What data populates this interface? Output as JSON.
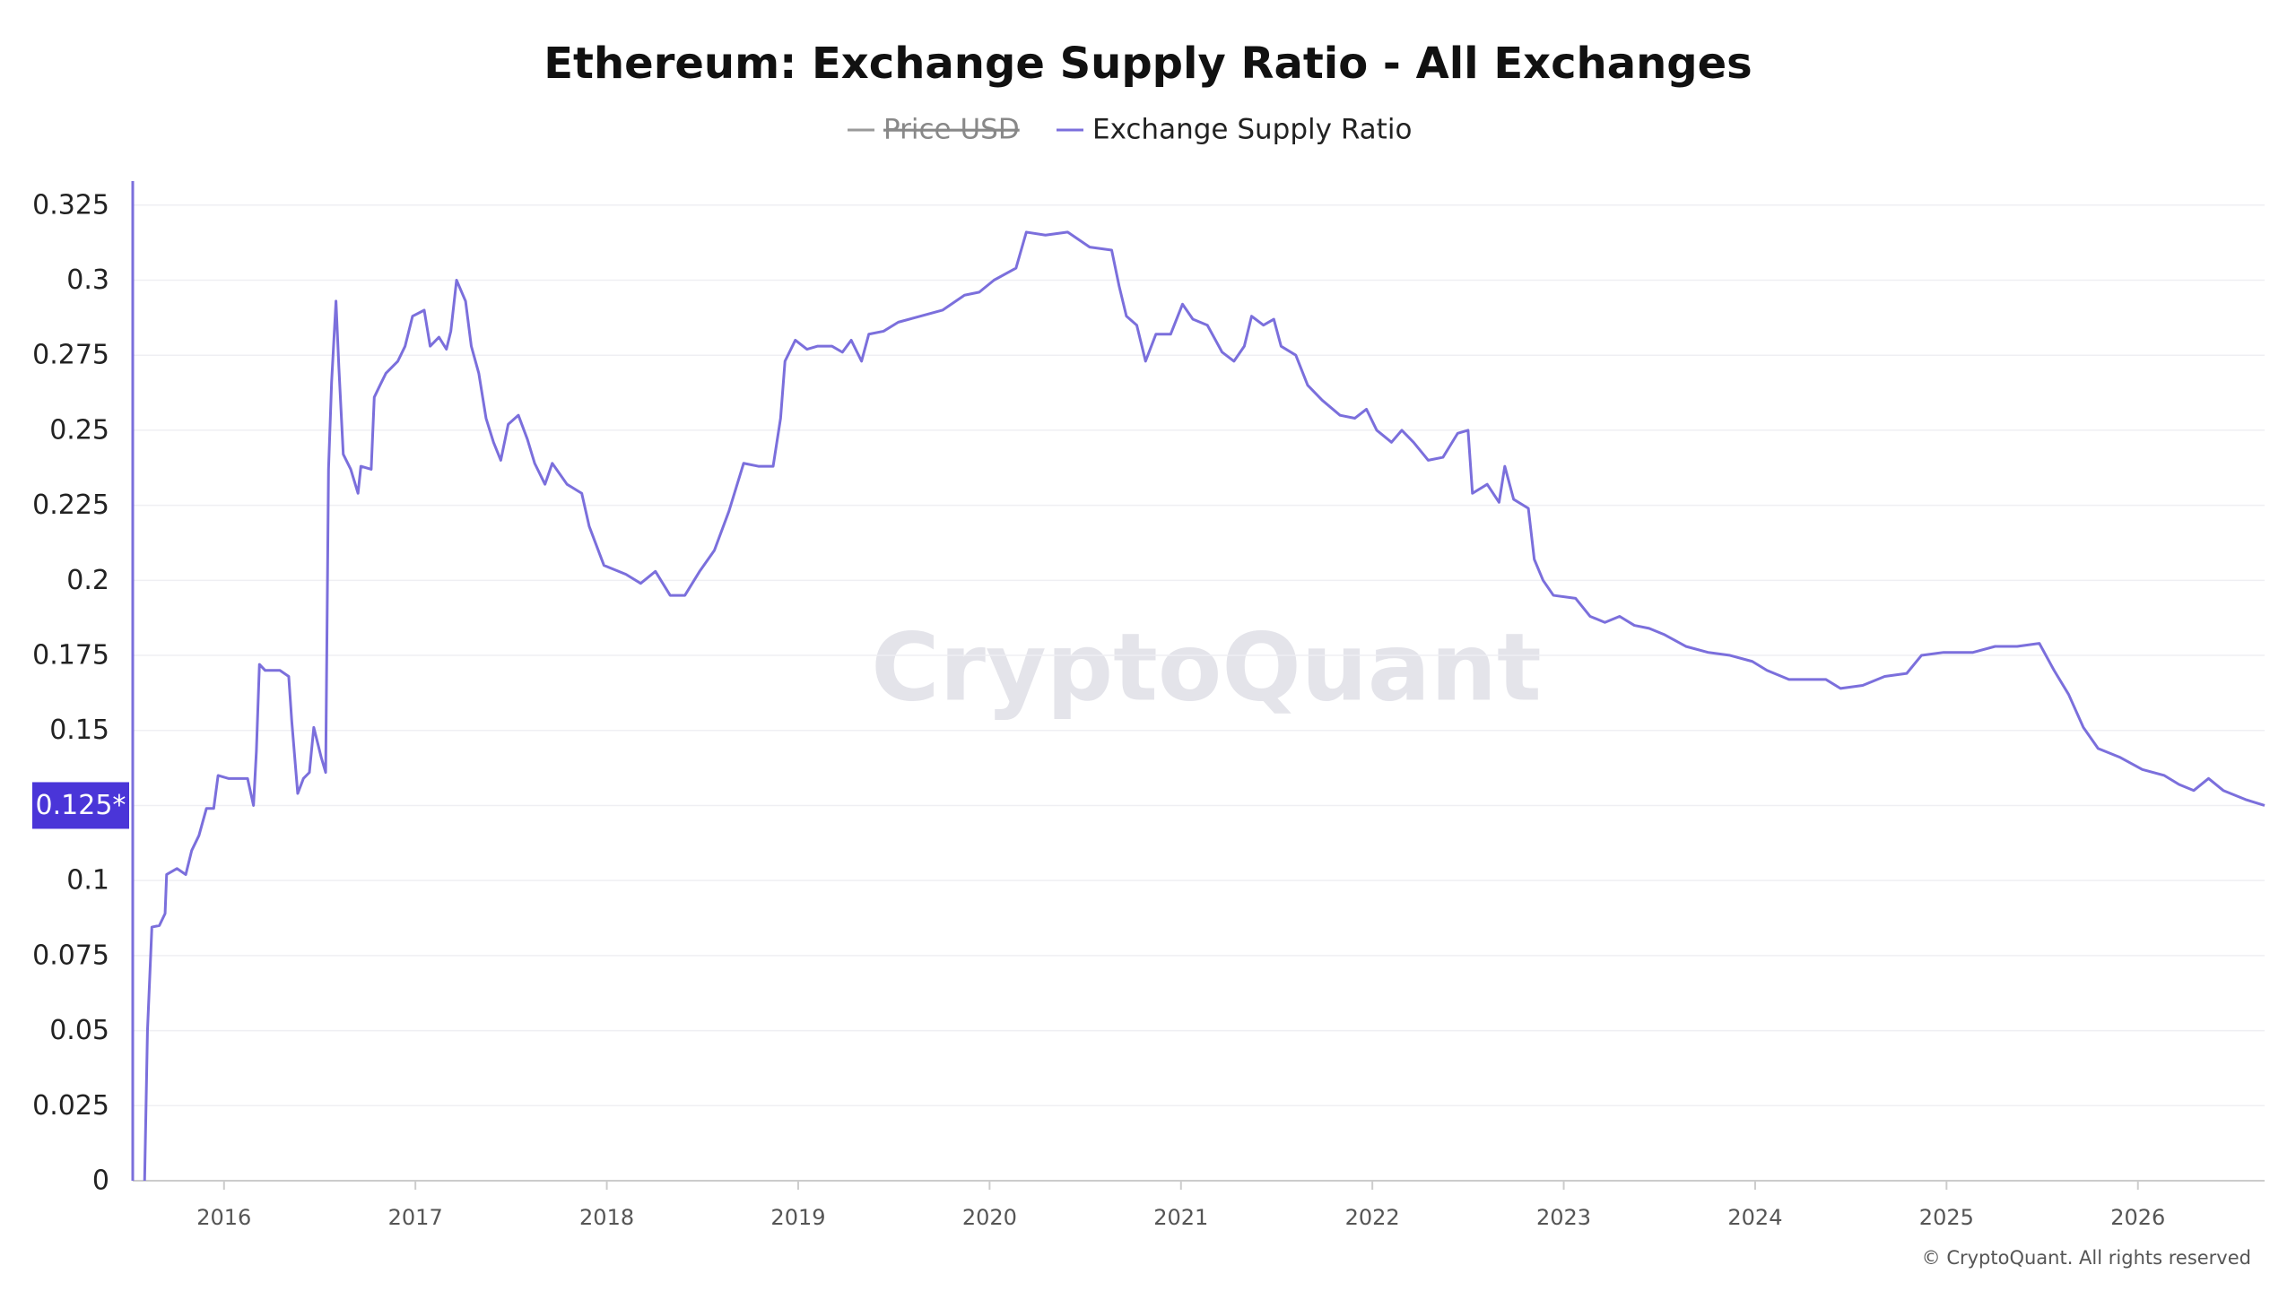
{
  "chart_data": {
    "type": "line",
    "title": "Ethereum: Exchange Supply Ratio - All Exchanges",
    "watermark": "CryptoQuant",
    "credit": "© CryptoQuant. All rights reserved",
    "x": [
      2015.585,
      2015.6,
      2015.623,
      2015.662,
      2015.692,
      2015.7,
      2015.754,
      2015.8,
      2015.831,
      2015.869,
      2015.908,
      2015.946,
      2015.969,
      2016.023,
      2016.123,
      2016.154,
      2016.169,
      2016.185,
      2016.215,
      2016.292,
      2016.338,
      2016.354,
      2016.385,
      2016.415,
      2016.446,
      2016.469,
      2016.508,
      2016.531,
      2016.546,
      2016.562,
      2016.585,
      2016.6,
      2016.623,
      2016.662,
      2016.7,
      2016.715,
      2016.769,
      2016.785,
      2016.815,
      2016.846,
      2016.908,
      2016.946,
      2016.985,
      2017.046,
      2017.077,
      2017.123,
      2017.162,
      2017.185,
      2017.215,
      2017.262,
      2017.292,
      2017.331,
      2017.369,
      2017.408,
      2017.446,
      2017.485,
      2017.538,
      2017.585,
      2017.623,
      2017.677,
      2017.715,
      2017.792,
      2017.869,
      2017.908,
      2017.985,
      2018.1,
      2018.177,
      2018.254,
      2018.331,
      2018.408,
      2018.485,
      2018.562,
      2018.638,
      2018.715,
      2018.792,
      2018.869,
      2018.908,
      2018.931,
      2018.985,
      2019.046,
      2019.1,
      2019.177,
      2019.231,
      2019.277,
      2019.331,
      2019.369,
      2019.446,
      2019.523,
      2019.638,
      2019.754,
      2019.869,
      2019.946,
      2020.023,
      2020.138,
      2020.192,
      2020.292,
      2020.408,
      2020.523,
      2020.638,
      2020.677,
      2020.715,
      2020.769,
      2020.815,
      2020.869,
      2020.946,
      2021.008,
      2021.062,
      2021.138,
      2021.215,
      2021.277,
      2021.331,
      2021.369,
      2021.431,
      2021.485,
      2021.523,
      2021.6,
      2021.662,
      2021.738,
      2021.831,
      2021.908,
      2021.969,
      2022.023,
      2022.1,
      2022.154,
      2022.215,
      2022.292,
      2022.369,
      2022.446,
      2022.5,
      2022.523,
      2022.6,
      2022.662,
      2022.692,
      2022.738,
      2022.815,
      2022.846,
      2022.892,
      2022.946,
      2023.062,
      2023.138,
      2023.215,
      2023.292,
      2023.369,
      2023.446,
      2023.523,
      2023.638,
      2023.754,
      2023.869,
      2023.985,
      2024.062,
      2024.177,
      2024.254,
      2024.369,
      2024.446,
      2024.562,
      2024.677,
      2024.792,
      2024.869,
      2024.985,
      2025.138,
      2025.254,
      2025.369,
      2025.485,
      2025.562,
      2025.638,
      2025.715,
      2025.792,
      2025.908,
      2026.023,
      2026.138,
      2026.215,
      2026.292,
      2026.369,
      2026.446,
      2026.562,
      2026.662
    ],
    "series": [
      {
        "name": "Price USD",
        "color": "#9a9a9a",
        "hidden": true
      },
      {
        "name": "Exchange Supply Ratio",
        "color": "#7b6fdc",
        "values": [
          0,
          0.05,
          0.0845,
          0.085,
          0.089,
          0.102,
          0.104,
          0.102,
          0.11,
          0.115,
          0.124,
          0.124,
          0.135,
          0.134,
          0.134,
          0.125,
          0.143,
          0.172,
          0.17,
          0.17,
          0.168,
          0.153,
          0.129,
          0.134,
          0.136,
          0.151,
          0.141,
          0.136,
          0.237,
          0.266,
          0.293,
          0.271,
          0.242,
          0.237,
          0.229,
          0.238,
          0.237,
          0.261,
          0.265,
          0.269,
          0.273,
          0.278,
          0.288,
          0.29,
          0.278,
          0.281,
          0.277,
          0.283,
          0.3,
          0.293,
          0.278,
          0.269,
          0.254,
          0.246,
          0.24,
          0.252,
          0.255,
          0.247,
          0.239,
          0.232,
          0.239,
          0.232,
          0.229,
          0.218,
          0.205,
          0.202,
          0.199,
          0.203,
          0.195,
          0.195,
          0.203,
          0.21,
          0.223,
          0.239,
          0.238,
          0.238,
          0.254,
          0.273,
          0.28,
          0.277,
          0.278,
          0.278,
          0.276,
          0.28,
          0.273,
          0.282,
          0.283,
          0.286,
          0.288,
          0.29,
          0.295,
          0.296,
          0.3,
          0.304,
          0.316,
          0.315,
          0.316,
          0.311,
          0.31,
          0.298,
          0.288,
          0.285,
          0.273,
          0.282,
          0.282,
          0.292,
          0.287,
          0.285,
          0.276,
          0.273,
          0.278,
          0.288,
          0.285,
          0.287,
          0.278,
          0.275,
          0.265,
          0.26,
          0.255,
          0.254,
          0.257,
          0.25,
          0.246,
          0.25,
          0.246,
          0.24,
          0.241,
          0.249,
          0.25,
          0.229,
          0.232,
          0.226,
          0.238,
          0.227,
          0.224,
          0.207,
          0.2,
          0.195,
          0.194,
          0.188,
          0.186,
          0.188,
          0.185,
          0.184,
          0.182,
          0.178,
          0.176,
          0.175,
          0.173,
          0.17,
          0.167,
          0.167,
          0.167,
          0.164,
          0.165,
          0.168,
          0.169,
          0.175,
          0.176,
          0.176,
          0.178,
          0.178,
          0.179,
          0.17,
          0.162,
          0.151,
          0.144,
          0.141,
          0.137,
          0.135,
          0.132,
          0.13,
          0.134,
          0.13,
          0.127,
          0.125
        ]
      }
    ],
    "xlim": [
      2015.523,
      2026.662
    ],
    "xticks": [
      2016,
      2017,
      2018,
      2019,
      2020,
      2021,
      2022,
      2023,
      2024,
      2025,
      2026
    ],
    "ylim": [
      0,
      0.333
    ],
    "yticks": [
      0,
      0.025,
      0.05,
      0.075,
      0.1,
      {
        "value": 0.125,
        "label": "0.125*"
      },
      0.15,
      0.175,
      0.2,
      0.225,
      0.25,
      0.275,
      0.3,
      0.325
    ],
    "grid": true
  }
}
